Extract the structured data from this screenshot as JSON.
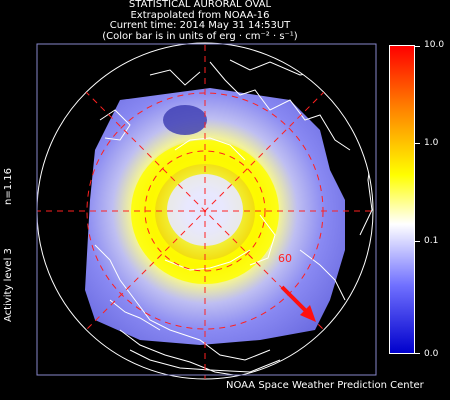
{
  "header": {
    "line1": "STATISTICAL AURORAL OVAL",
    "line2": "Extrapolated from NOAA-16",
    "line3": "Current time: 2014 May 31 14:53UT",
    "line4": "(Color bar is in units of erg · cm⁻² · s⁻¹)"
  },
  "side_labels": {
    "n_value": "n=1.16",
    "activity": "Activity level 3"
  },
  "map": {
    "latitude_label": "60",
    "background_color": "#000000",
    "oval_peak_color": "#ffff00",
    "low_flux_color": "#7b7bff",
    "grid_color": "#ff0000",
    "coastline_color": "#ffffff",
    "sun_direction_arrow_color": "#ff0000"
  },
  "colorbar": {
    "ticks": [
      "10.0",
      "1.0",
      "0.1",
      "0.0"
    ],
    "gradient_colors": [
      "#ff0000",
      "#ff8000",
      "#ffff00",
      "#ffffff",
      "#7070ff",
      "#0000cc"
    ]
  },
  "footer": {
    "credit": "NOAA Space Weather Prediction Center"
  }
}
